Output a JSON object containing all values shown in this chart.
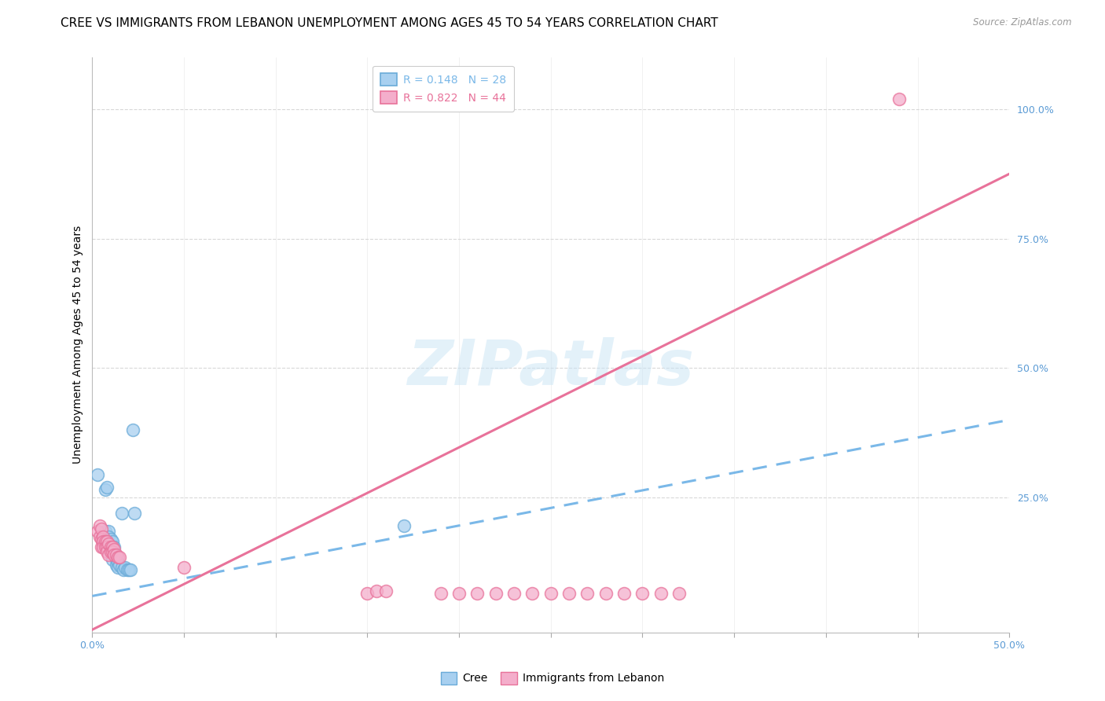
{
  "title": "CREE VS IMMIGRANTS FROM LEBANON UNEMPLOYMENT AMONG AGES 45 TO 54 YEARS CORRELATION CHART",
  "source": "Source: ZipAtlas.com",
  "ylabel": "Unemployment Among Ages 45 to 54 years",
  "watermark": "ZIPatlas",
  "xlim": [
    0.0,
    0.5
  ],
  "ylim": [
    -0.01,
    1.1
  ],
  "yticks_right": [
    0.0,
    0.25,
    0.5,
    0.75,
    1.0
  ],
  "ytick_labels_right": [
    "",
    "25.0%",
    "50.0%",
    "75.0%",
    "100.0%"
  ],
  "legend_cree": "R = 0.148   N = 28",
  "legend_lebanon": "R = 0.822   N = 44",
  "cree_color": "#A8D0F0",
  "lebanon_color": "#F4AECB",
  "cree_edge_color": "#6AABD8",
  "lebanon_edge_color": "#E8729A",
  "cree_line_color": "#7AB8E8",
  "lebanon_line_color": "#E87AA0",
  "cree_scatter": [
    [
      0.003,
      0.295
    ],
    [
      0.007,
      0.265
    ],
    [
      0.007,
      0.185
    ],
    [
      0.008,
      0.27
    ],
    [
      0.009,
      0.185
    ],
    [
      0.009,
      0.175
    ],
    [
      0.01,
      0.17
    ],
    [
      0.01,
      0.155
    ],
    [
      0.01,
      0.145
    ],
    [
      0.011,
      0.165
    ],
    [
      0.011,
      0.13
    ],
    [
      0.012,
      0.155
    ],
    [
      0.012,
      0.145
    ],
    [
      0.013,
      0.13
    ],
    [
      0.013,
      0.12
    ],
    [
      0.014,
      0.125
    ],
    [
      0.014,
      0.115
    ],
    [
      0.015,
      0.12
    ],
    [
      0.016,
      0.22
    ],
    [
      0.016,
      0.115
    ],
    [
      0.017,
      0.11
    ],
    [
      0.018,
      0.115
    ],
    [
      0.019,
      0.11
    ],
    [
      0.02,
      0.11
    ],
    [
      0.021,
      0.11
    ],
    [
      0.022,
      0.38
    ],
    [
      0.023,
      0.22
    ],
    [
      0.17,
      0.195
    ]
  ],
  "lebanon_scatter": [
    [
      0.003,
      0.185
    ],
    [
      0.004,
      0.195
    ],
    [
      0.004,
      0.175
    ],
    [
      0.005,
      0.19
    ],
    [
      0.005,
      0.17
    ],
    [
      0.005,
      0.155
    ],
    [
      0.006,
      0.175
    ],
    [
      0.006,
      0.165
    ],
    [
      0.006,
      0.155
    ],
    [
      0.007,
      0.165
    ],
    [
      0.007,
      0.155
    ],
    [
      0.008,
      0.165
    ],
    [
      0.008,
      0.155
    ],
    [
      0.008,
      0.145
    ],
    [
      0.009,
      0.16
    ],
    [
      0.009,
      0.14
    ],
    [
      0.01,
      0.155
    ],
    [
      0.01,
      0.145
    ],
    [
      0.011,
      0.155
    ],
    [
      0.011,
      0.145
    ],
    [
      0.012,
      0.15
    ],
    [
      0.012,
      0.14
    ],
    [
      0.013,
      0.14
    ],
    [
      0.014,
      0.135
    ],
    [
      0.015,
      0.135
    ],
    [
      0.15,
      0.065
    ],
    [
      0.155,
      0.07
    ],
    [
      0.16,
      0.07
    ],
    [
      0.19,
      0.065
    ],
    [
      0.2,
      0.065
    ],
    [
      0.21,
      0.065
    ],
    [
      0.22,
      0.065
    ],
    [
      0.23,
      0.065
    ],
    [
      0.24,
      0.065
    ],
    [
      0.25,
      0.065
    ],
    [
      0.26,
      0.065
    ],
    [
      0.27,
      0.065
    ],
    [
      0.28,
      0.065
    ],
    [
      0.29,
      0.065
    ],
    [
      0.3,
      0.065
    ],
    [
      0.31,
      0.065
    ],
    [
      0.32,
      0.065
    ],
    [
      0.44,
      1.02
    ],
    [
      0.05,
      0.115
    ]
  ],
  "cree_trend_x": [
    0.0,
    0.5
  ],
  "cree_trend_y": [
    0.06,
    0.4
  ],
  "lebanon_trend_x": [
    0.0,
    0.5
  ],
  "lebanon_trend_y": [
    -0.005,
    0.875
  ],
  "grid_yticks": [
    0.25,
    0.5,
    0.75,
    1.0
  ],
  "background_color": "#FFFFFF",
  "grid_color": "#D8D8D8",
  "title_fontsize": 11,
  "axis_label_fontsize": 10,
  "tick_fontsize": 9,
  "legend_fontsize": 10,
  "tick_label_color": "#5B9BD5"
}
